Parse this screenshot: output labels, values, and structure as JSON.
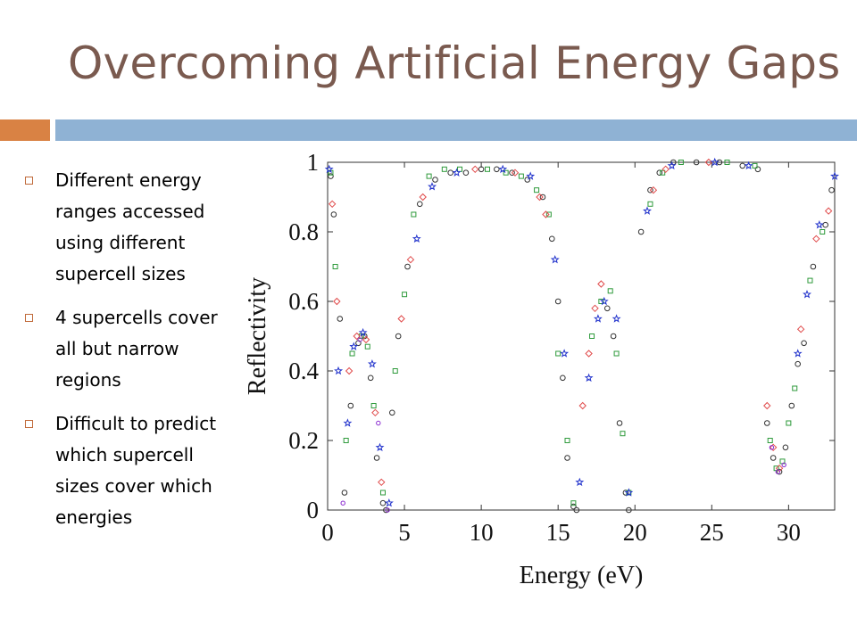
{
  "slide": {
    "title": "Overcoming Artificial Energy Gaps",
    "accent_colors": {
      "title": "#7a5a4f",
      "bar_left": "#d98244",
      "bar_right": "#8fb2d4",
      "bullet": "#c06a3a"
    },
    "bullets": [
      "Different energy ranges accessed using different supercell sizes",
      "4 supercells cover all but narrow regions",
      "Difficult to predict which supercell sizes cover which energies"
    ]
  },
  "chart_data": {
    "type": "scatter",
    "xlabel": "Energy (eV)",
    "ylabel": "Reflectivity",
    "xlim": [
      0,
      33
    ],
    "ylim": [
      0,
      1
    ],
    "xticks": [
      0,
      5,
      10,
      15,
      20,
      25,
      30
    ],
    "xtick_labels": [
      "0",
      "5",
      "10",
      "15",
      "20",
      "25",
      "30"
    ],
    "yticks": [
      0,
      0.2,
      0.4,
      0.6,
      0.8,
      1
    ],
    "ytick_labels": [
      "0",
      "0.2",
      "0.4",
      "0.6",
      "0.8",
      "1"
    ],
    "grid": false,
    "series": [
      {
        "marker": "circle",
        "color": "#333333",
        "x": [
          0.2,
          0.4,
          0.8,
          1.1,
          1.5,
          2.0,
          2.4,
          2.8,
          3.2,
          3.6,
          3.8,
          4.2,
          4.6,
          5.2,
          6.0,
          7.0,
          8.0,
          9.0,
          10.0,
          11.0,
          12.0,
          13.0,
          14.0,
          14.6,
          15.0,
          15.3,
          15.6,
          16.0,
          16.2,
          18.2,
          18.6,
          19.0,
          19.4,
          19.6,
          20.4,
          21.0,
          21.6,
          22.5,
          24.0,
          25.5,
          27.0,
          28.0,
          28.6,
          29.0,
          29.4,
          29.8,
          30.2,
          30.6,
          31.0,
          31.6,
          32.4,
          32.8
        ],
        "y": [
          0.96,
          0.85,
          0.55,
          0.05,
          0.3,
          0.48,
          0.5,
          0.38,
          0.15,
          0.02,
          0.0,
          0.28,
          0.5,
          0.7,
          0.88,
          0.95,
          0.97,
          0.97,
          0.98,
          0.98,
          0.97,
          0.95,
          0.9,
          0.78,
          0.6,
          0.38,
          0.15,
          0.01,
          0.0,
          0.58,
          0.5,
          0.25,
          0.05,
          0.0,
          0.8,
          0.92,
          0.97,
          1.0,
          1.0,
          1.0,
          0.99,
          0.98,
          0.25,
          0.15,
          0.11,
          0.18,
          0.3,
          0.42,
          0.48,
          0.7,
          0.82,
          0.92
        ]
      },
      {
        "marker": "square",
        "color": "#2e9a3b",
        "x": [
          0.2,
          0.5,
          1.2,
          1.6,
          2.2,
          2.6,
          3.0,
          3.6,
          4.4,
          5.0,
          5.6,
          6.6,
          7.6,
          8.6,
          10.4,
          11.6,
          12.6,
          13.6,
          14.4,
          15.0,
          15.6,
          16.0,
          17.2,
          17.8,
          18.4,
          18.8,
          19.2,
          19.6,
          21.0,
          21.8,
          23.0,
          26.0,
          27.8,
          28.8,
          29.2,
          29.6,
          30.0,
          30.4,
          31.4,
          32.2
        ],
        "y": [
          0.97,
          0.7,
          0.2,
          0.45,
          0.5,
          0.47,
          0.3,
          0.05,
          0.4,
          0.62,
          0.85,
          0.96,
          0.98,
          0.98,
          0.98,
          0.97,
          0.96,
          0.92,
          0.85,
          0.45,
          0.2,
          0.02,
          0.5,
          0.6,
          0.63,
          0.45,
          0.22,
          0.05,
          0.88,
          0.97,
          1.0,
          1.0,
          0.99,
          0.2,
          0.12,
          0.14,
          0.25,
          0.35,
          0.66,
          0.8
        ]
      },
      {
        "marker": "diamond",
        "color": "#e04a4a",
        "x": [
          0.3,
          0.6,
          1.4,
          1.9,
          2.5,
          3.1,
          3.5,
          4.8,
          5.4,
          6.2,
          9.6,
          12.2,
          13.8,
          14.2,
          16.6,
          17.0,
          17.4,
          17.8,
          21.2,
          22.0,
          24.8,
          28.6,
          29.0,
          29.4,
          30.8,
          31.8,
          32.6
        ],
        "y": [
          0.88,
          0.6,
          0.4,
          0.5,
          0.49,
          0.28,
          0.08,
          0.55,
          0.72,
          0.9,
          0.98,
          0.97,
          0.9,
          0.85,
          0.3,
          0.45,
          0.58,
          0.65,
          0.92,
          0.98,
          1.0,
          0.3,
          0.18,
          0.12,
          0.52,
          0.78,
          0.86
        ]
      },
      {
        "marker": "star",
        "color": "#2233cc",
        "x": [
          0.1,
          0.7,
          1.3,
          1.7,
          2.3,
          2.9,
          3.4,
          4.0,
          5.8,
          6.8,
          8.4,
          11.4,
          13.2,
          14.8,
          15.4,
          16.4,
          17.0,
          17.6,
          18.0,
          18.8,
          19.6,
          20.8,
          22.4,
          25.2,
          27.4,
          30.6,
          31.2,
          32.0,
          33.0
        ],
        "y": [
          0.98,
          0.4,
          0.25,
          0.47,
          0.51,
          0.42,
          0.18,
          0.02,
          0.78,
          0.93,
          0.97,
          0.98,
          0.96,
          0.72,
          0.45,
          0.08,
          0.38,
          0.55,
          0.6,
          0.55,
          0.05,
          0.86,
          0.99,
          1.0,
          0.99,
          0.45,
          0.62,
          0.82,
          0.96
        ]
      },
      {
        "marker": "circle-small",
        "color": "#8a2ad0",
        "x": [
          1.0,
          2.1,
          3.3,
          3.9,
          28.9,
          29.3,
          29.7
        ],
        "y": [
          0.02,
          0.49,
          0.25,
          0.0,
          0.18,
          0.11,
          0.13
        ]
      }
    ]
  }
}
